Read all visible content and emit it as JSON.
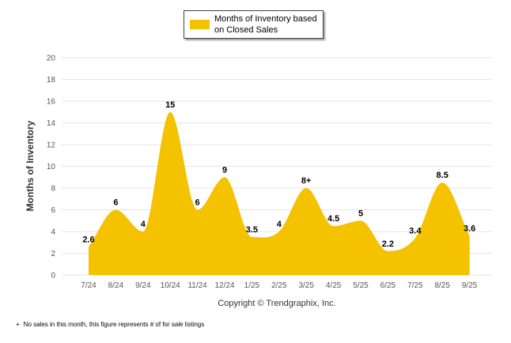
{
  "chart_data": {
    "type": "area",
    "title": "",
    "xlabel": "Copyright © Trendgraphix, Inc.",
    "ylabel": "Months of Inventory",
    "ylim": [
      0,
      20
    ],
    "yticks": [
      0,
      2,
      4,
      6,
      8,
      10,
      12,
      14,
      16,
      18,
      20
    ],
    "categories": [
      "7/24",
      "8/24",
      "9/24",
      "10/24",
      "11/24",
      "12/24",
      "1/25",
      "2/25",
      "3/25",
      "4/25",
      "5/25",
      "6/25",
      "7/25",
      "8/25",
      "9/25"
    ],
    "series": [
      {
        "name": "Months of Inventory based on Closed Sales",
        "values": [
          2.6,
          6,
          4,
          15,
          6,
          9,
          3.5,
          4,
          8,
          4.5,
          5,
          2.2,
          3.4,
          8.5,
          3.6
        ],
        "labels": [
          "2.6",
          "6",
          "4",
          "15",
          "6",
          "9",
          "3.5",
          "4",
          "8+",
          "4.5",
          "5",
          "2.2",
          "3.4",
          "8.5",
          "3.6"
        ],
        "color": "#F5C200"
      }
    ],
    "grid": true,
    "legend_position": "top"
  },
  "legend": {
    "label": "Months of Inventory based on Closed Sales"
  },
  "footnote": {
    "symbol": "+",
    "text": "No sales in this month, this figure represents # of for sale listings"
  },
  "colors": {
    "fill": "#F5C200",
    "grid": "#e6e6e6",
    "axis_text": "#555555"
  }
}
